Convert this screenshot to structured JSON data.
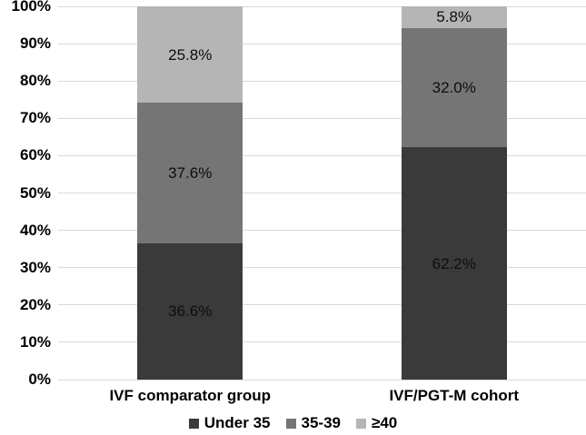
{
  "chart_data": {
    "type": "bar",
    "variant": "stacked-100",
    "title": "",
    "xlabel": "",
    "ylabel": "",
    "categories": [
      "IVF comparator group",
      "IVF/PGT-M cohort"
    ],
    "series": [
      {
        "name": "Under 35",
        "color": "#3a3a3a",
        "values": [
          36.6,
          62.2
        ]
      },
      {
        "name": "35-39",
        "color": "#757575",
        "values": [
          37.6,
          32.0
        ]
      },
      {
        "name": "≥40",
        "color": "#b5b5b5",
        "values": [
          25.8,
          5.8
        ]
      }
    ],
    "labels": [
      [
        "36.6%",
        "37.6%",
        "25.8%"
      ],
      [
        "62.2%",
        "32.0%",
        "5.8%"
      ]
    ],
    "y_ticks": [
      "0%",
      "10%",
      "20%",
      "30%",
      "40%",
      "50%",
      "60%",
      "70%",
      "80%",
      "90%",
      "100%"
    ],
    "ylim": [
      0,
      100
    ],
    "grid": "horizontal",
    "gridline_color": "#d9d9d9",
    "background_color": "#ffffff",
    "text_color": "#000000",
    "legend_position": "bottom"
  }
}
